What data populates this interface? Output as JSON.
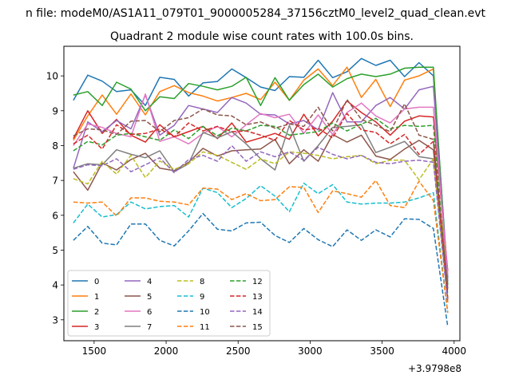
{
  "suptitle": "n file: modeM0/AS1A11_079T01_9000005284_37156cztM0_level2_quad_clean.evt",
  "chart_data": {
    "type": "line",
    "title": "Quadrant 2 module wise count rates with 100.0s bins.",
    "xlabel": "",
    "ylabel": "",
    "x_offset_label": "+3.9798e8",
    "xlim": [
      1290,
      4040
    ],
    "ylim": [
      2.4,
      10.85
    ],
    "x_ticks": [
      1500,
      2000,
      2500,
      3000,
      3500,
      4000
    ],
    "x_tick_labels": [
      "1500",
      "2000",
      "2500",
      "3000",
      "3500",
      "4000"
    ],
    "y_ticks": [
      3,
      4,
      5,
      6,
      7,
      8,
      9,
      10
    ],
    "y_tick_labels": [
      "3",
      "4",
      "5",
      "6",
      "7",
      "8",
      "9",
      "10"
    ],
    "grid": false,
    "legend_position": "lower-left",
    "legend_columns": 4,
    "x": [
      1356,
      1456,
      1556,
      1656,
      1756,
      1856,
      1956,
      2056,
      2156,
      2256,
      2356,
      2456,
      2556,
      2656,
      2756,
      2856,
      2956,
      3056,
      3156,
      3256,
      3356,
      3456,
      3556,
      3656,
      3756,
      3856,
      3956
    ],
    "series": [
      {
        "name": "0",
        "color": "#1f77b4",
        "dash": false,
        "values": [
          9.3,
          10.02,
          9.85,
          9.55,
          9.6,
          9.15,
          9.96,
          9.9,
          9.42,
          9.8,
          9.84,
          10.2,
          9.95,
          9.68,
          9.58,
          9.98,
          9.96,
          10.45,
          9.95,
          10.12,
          10.5,
          10.3,
          10.45,
          9.98,
          10.38,
          10.0,
          4.2
        ]
      },
      {
        "name": "1",
        "color": "#ff7f0e",
        "dash": false,
        "values": [
          8.15,
          8.85,
          9.45,
          8.9,
          9.48,
          8.88,
          9.55,
          9.72,
          9.52,
          9.42,
          9.28,
          9.38,
          9.5,
          9.32,
          9.82,
          9.3,
          9.88,
          10.2,
          9.72,
          10.25,
          9.38,
          9.9,
          9.12,
          9.88,
          10.0,
          10.2,
          3.5
        ]
      },
      {
        "name": "2",
        "color": "#2ca02c",
        "dash": false,
        "values": [
          9.45,
          9.55,
          9.15,
          9.82,
          9.62,
          9.0,
          9.4,
          9.35,
          9.78,
          9.7,
          9.6,
          9.7,
          9.96,
          9.15,
          9.95,
          9.3,
          9.75,
          10.05,
          9.68,
          9.92,
          10.05,
          9.98,
          10.05,
          10.22,
          10.25,
          10.25,
          4.0
        ]
      },
      {
        "name": "3",
        "color": "#d62728",
        "dash": false,
        "values": [
          8.2,
          9.0,
          8.35,
          8.75,
          8.3,
          8.1,
          8.6,
          8.25,
          8.4,
          8.55,
          8.2,
          8.65,
          8.1,
          8.22,
          8.35,
          8.18,
          8.9,
          8.28,
          8.7,
          9.28,
          8.95,
          8.68,
          8.3,
          8.7,
          8.85,
          8.82,
          4.4
        ]
      },
      {
        "name": "4",
        "color": "#9467bd",
        "dash": false,
        "values": [
          7.35,
          8.68,
          8.4,
          8.72,
          8.48,
          9.45,
          8.3,
          8.58,
          9.15,
          9.05,
          8.95,
          9.38,
          9.22,
          8.9,
          8.88,
          8.62,
          8.72,
          8.45,
          9.52,
          8.68,
          8.68,
          9.15,
          9.38,
          9.05,
          9.6,
          9.7,
          4.1
        ]
      },
      {
        "name": "5",
        "color": "#8c564b",
        "dash": false,
        "values": [
          7.25,
          6.72,
          7.5,
          7.3,
          7.6,
          7.78,
          7.35,
          7.28,
          7.52,
          7.92,
          7.7,
          7.85,
          7.88,
          7.9,
          8.18,
          7.48,
          7.88,
          7.55,
          8.32,
          8.1,
          8.3,
          7.7,
          7.6,
          7.9,
          8.15,
          7.88,
          3.9
        ]
      },
      {
        "name": "6",
        "color": "#e377c2",
        "dash": false,
        "values": [
          8.0,
          8.62,
          8.52,
          8.35,
          8.25,
          9.48,
          8.12,
          8.25,
          8.05,
          8.35,
          8.55,
          8.25,
          8.6,
          8.92,
          8.8,
          8.9,
          8.35,
          8.88,
          8.32,
          8.95,
          9.22,
          8.85,
          8.65,
          9.05,
          9.1,
          9.1,
          4.3
        ]
      },
      {
        "name": "7",
        "color": "#7f7f7f",
        "dash": false,
        "values": [
          7.35,
          7.48,
          7.45,
          7.88,
          7.75,
          7.65,
          7.85,
          7.25,
          7.48,
          8.38,
          8.22,
          8.4,
          8.05,
          7.62,
          7.3,
          8.58,
          7.55,
          8.0,
          8.52,
          8.55,
          8.6,
          7.8,
          7.95,
          8.12,
          7.68,
          7.62,
          3.6
        ]
      },
      {
        "name": "8",
        "color": "#bcbd22",
        "dash": true,
        "values": [
          7.05,
          6.9,
          7.55,
          7.18,
          7.72,
          7.08,
          7.56,
          7.32,
          7.48,
          7.82,
          7.72,
          7.52,
          7.32,
          7.62,
          7.48,
          7.82,
          7.78,
          7.72,
          7.62,
          7.68,
          7.72,
          7.48,
          7.58,
          7.58,
          7.02,
          7.62,
          3.6
        ]
      },
      {
        "name": "9",
        "color": "#17becf",
        "dash": true,
        "values": [
          5.78,
          6.32,
          5.95,
          6.02,
          6.38,
          6.18,
          6.25,
          6.28,
          5.95,
          6.78,
          6.65,
          6.22,
          6.48,
          6.85,
          6.55,
          6.1,
          6.92,
          6.62,
          6.88,
          6.38,
          6.32,
          6.35,
          6.35,
          6.38,
          6.5,
          6.65,
          3.2
        ]
      },
      {
        "name": "10",
        "color": "#1f77b4",
        "dash": true,
        "values": [
          5.28,
          5.68,
          5.2,
          5.15,
          5.75,
          5.75,
          5.28,
          5.12,
          5.55,
          6.05,
          5.6,
          5.55,
          5.78,
          5.8,
          5.42,
          5.22,
          5.62,
          5.3,
          5.1,
          5.58,
          5.28,
          5.58,
          5.38,
          5.9,
          5.88,
          5.62,
          2.8
        ]
      },
      {
        "name": "11",
        "color": "#ff7f0e",
        "dash": true,
        "values": [
          6.38,
          6.35,
          6.38,
          5.98,
          6.5,
          6.5,
          6.4,
          6.38,
          6.3,
          6.78,
          6.75,
          6.45,
          6.62,
          6.42,
          6.45,
          6.82,
          6.8,
          6.08,
          6.7,
          6.62,
          6.52,
          7.0,
          6.28,
          6.22,
          6.98,
          6.42,
          3.2
        ]
      },
      {
        "name": "12",
        "color": "#2ca02c",
        "dash": true,
        "values": [
          7.85,
          8.12,
          8.02,
          8.3,
          8.35,
          8.25,
          8.15,
          8.45,
          8.2,
          8.55,
          8.28,
          8.5,
          8.42,
          8.58,
          8.55,
          8.3,
          8.35,
          8.4,
          8.65,
          8.42,
          8.62,
          8.78,
          8.48,
          8.58,
          8.55,
          8.58,
          3.7
        ]
      },
      {
        "name": "13",
        "color": "#d62728",
        "dash": true,
        "values": [
          8.05,
          8.3,
          7.9,
          8.6,
          8.32,
          8.35,
          8.48,
          8.25,
          8.65,
          8.42,
          8.55,
          8.4,
          8.42,
          8.3,
          8.15,
          8.72,
          8.45,
          8.5,
          8.22,
          8.92,
          8.45,
          8.38,
          8.05,
          8.32,
          7.75,
          8.12,
          3.6
        ]
      },
      {
        "name": "14",
        "color": "#9467bd",
        "dash": true,
        "values": [
          7.32,
          7.45,
          7.42,
          7.62,
          7.25,
          7.45,
          7.65,
          7.22,
          7.6,
          7.72,
          7.55,
          8.0,
          7.55,
          7.82,
          7.68,
          7.82,
          7.58,
          7.95,
          7.75,
          7.62,
          7.72,
          7.52,
          7.48,
          7.55,
          7.58,
          7.52,
          3.5
        ]
      },
      {
        "name": "15",
        "color": "#8c564b",
        "dash": true,
        "values": [
          8.28,
          8.48,
          8.45,
          8.32,
          8.7,
          8.72,
          8.4,
          8.72,
          8.8,
          9.05,
          8.88,
          8.85,
          8.6,
          8.68,
          8.5,
          8.62,
          8.55,
          9.1,
          8.42,
          9.32,
          8.75,
          8.58,
          8.4,
          9.2,
          8.3,
          8.18,
          3.8
        ]
      }
    ]
  }
}
